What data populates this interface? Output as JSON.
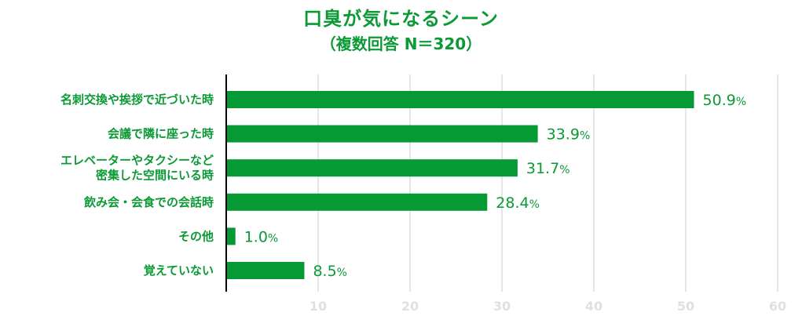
{
  "chart_data": {
    "type": "bar",
    "orientation": "horizontal",
    "title": "口臭が気になるシーン",
    "subtitle": "（複数回答 N＝320）",
    "unit": "%",
    "categories": [
      [
        "名刺交換や挨拶で近づいた時"
      ],
      [
        "会議で隣に座った時"
      ],
      [
        "エレベーターやタクシーなど",
        "密集した空間にいる時"
      ],
      [
        "飲み会・会食での会話時"
      ],
      [
        "その他"
      ],
      [
        "覚えていない"
      ]
    ],
    "values": [
      50.9,
      33.9,
      31.7,
      28.4,
      1.0,
      8.5
    ],
    "value_labels": [
      "50.9",
      "33.9",
      "31.7",
      "28.4",
      "1.0",
      "8.5"
    ],
    "xlim": [
      0,
      60
    ],
    "xticks": [
      10,
      20,
      30,
      40,
      50,
      60
    ],
    "xtick_labels": [
      "10",
      "20",
      "30",
      "40",
      "50",
      "60"
    ],
    "grid": true,
    "colors": {
      "bar": "#069a35",
      "text": "#0b9a35",
      "grid": "#e6e6e6",
      "axis": "#000000",
      "tick_text": "#e0e0e0"
    }
  }
}
